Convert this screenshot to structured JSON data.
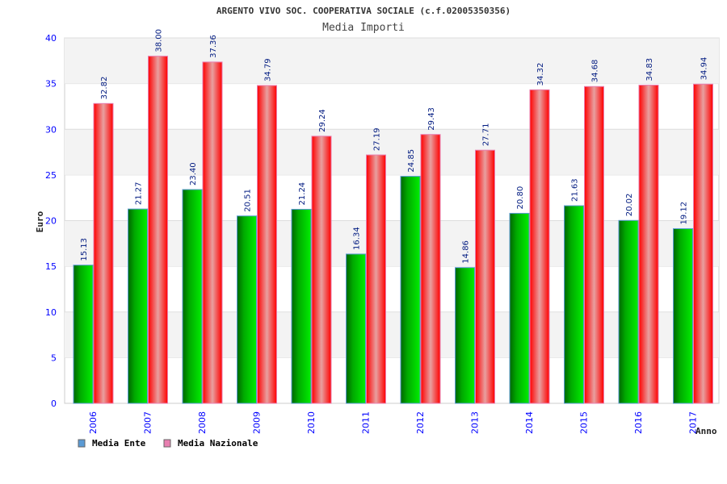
{
  "chart_data": {
    "type": "bar",
    "title": "ARGENTO VIVO SOC. COOPERATIVA SOCIALE (c.f.02005350356)",
    "subtitle": "Media Importi",
    "xlabel": "Anno",
    "ylabel": "Euro",
    "ylim": [
      0,
      40
    ],
    "yticks": [
      "0",
      "5",
      "10",
      "15",
      "20",
      "25",
      "30",
      "35",
      "40"
    ],
    "categories": [
      "2006",
      "2007",
      "2008",
      "2009",
      "2010",
      "2011",
      "2012",
      "2013",
      "2014",
      "2015",
      "2016",
      "2017"
    ],
    "series": [
      {
        "name": "Media Ente",
        "color": "#00aa00",
        "legend_color": "#5b9bd5",
        "values": [
          15.13,
          21.27,
          23.4,
          20.51,
          21.24,
          16.34,
          24.85,
          14.86,
          20.8,
          21.63,
          20.02,
          19.12
        ],
        "labels": [
          "15.13",
          "21.27",
          "23.40",
          "20.51",
          "21.24",
          "16.34",
          "24.85",
          "14.86",
          "20.80",
          "21.63",
          "20.02",
          "19.12"
        ]
      },
      {
        "name": "Media Nazionale",
        "color": "#ff0000",
        "legend_color": "#e87fb0",
        "values": [
          32.82,
          38.0,
          37.36,
          34.79,
          29.24,
          27.19,
          29.43,
          27.71,
          34.32,
          34.68,
          34.83,
          34.94
        ],
        "labels": [
          "32.82",
          "38.00",
          "37.36",
          "34.79",
          "29.24",
          "27.19",
          "29.43",
          "27.71",
          "34.32",
          "34.68",
          "34.83",
          "34.94"
        ]
      }
    ],
    "grid": true,
    "legend_position": "bottom-left"
  }
}
